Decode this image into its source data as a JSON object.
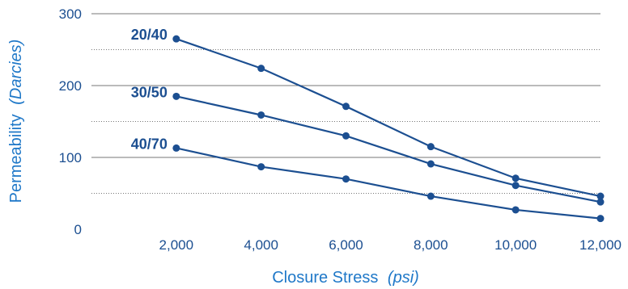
{
  "chart_data": {
    "type": "line",
    "x": [
      2000,
      4000,
      6000,
      8000,
      10000,
      12000
    ],
    "x_tick_labels": [
      "2,000",
      "4,000",
      "6,000",
      "8,000",
      "10,000",
      "12,000"
    ],
    "y_tick_labels": [
      "0",
      "100",
      "200",
      "300"
    ],
    "xlabel": {
      "main": "Closure Stress",
      "unit": "(psi)"
    },
    "ylabel": {
      "main": "Permeability",
      "unit": "(Darcies)"
    },
    "xlim": [
      0,
      12000
    ],
    "ylim": [
      0,
      300
    ],
    "major_gridlines": [
      100,
      200,
      300
    ],
    "minor_gridlines": [
      50,
      150,
      250
    ],
    "series": [
      {
        "name": "20/40",
        "values": [
          265,
          224,
          171,
          115,
          71,
          46
        ]
      },
      {
        "name": "30/50",
        "values": [
          185,
          159,
          130,
          91,
          61,
          38
        ]
      },
      {
        "name": "40/70",
        "values": [
          113,
          87,
          70,
          46,
          27,
          15
        ]
      }
    ],
    "colors": {
      "line": "#1c4f91",
      "grid": "#777777",
      "axis_title": "#1f78c8",
      "tick": "#1c4f91"
    }
  }
}
